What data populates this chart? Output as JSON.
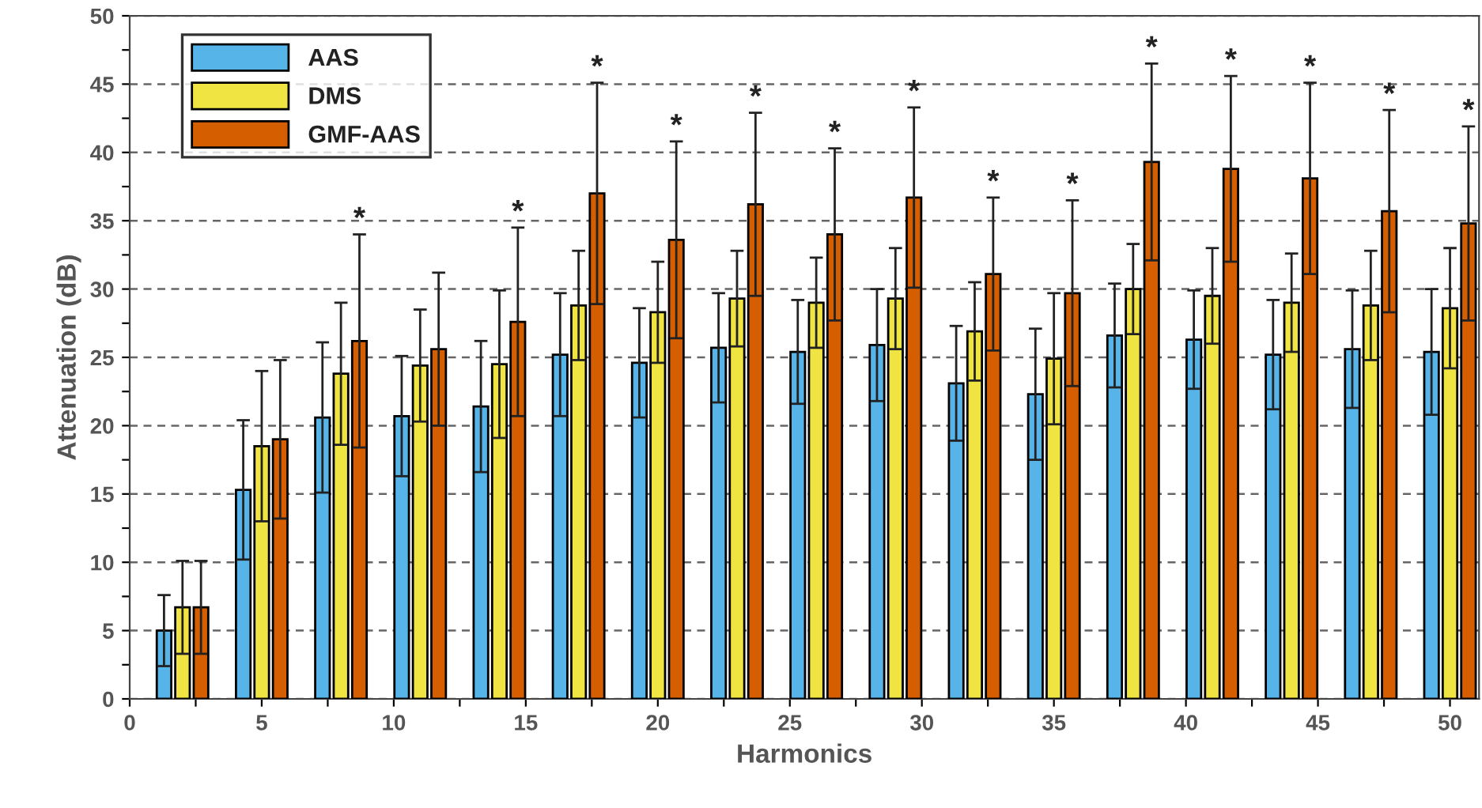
{
  "chart_data": {
    "type": "bar",
    "xlabel": "Harmonics",
    "ylabel": "Attenuation (dB)",
    "xlim": [
      0,
      51.1
    ],
    "xticks": [
      0,
      {
        "value": 2.5,
        "label": null
      },
      5,
      {
        "value": 7.5,
        "label": null
      },
      10,
      {
        "value": 12.5,
        "label": null
      },
      15,
      {
        "value": 17.5,
        "label": null
      },
      20,
      {
        "value": 22.5,
        "label": null
      },
      25,
      {
        "value": 27.5,
        "label": null
      },
      30,
      {
        "value": 32.5,
        "label": null
      },
      35,
      {
        "value": 37.5,
        "label": null
      },
      40,
      {
        "value": 42.5,
        "label": null
      },
      45,
      {
        "value": 47.5,
        "label": null
      },
      50
    ],
    "ylim": [
      0,
      50
    ],
    "yticks": [
      0,
      {
        "value": 2.5,
        "label": null
      },
      5,
      {
        "value": 7.5,
        "label": null
      },
      10,
      {
        "value": 12.5,
        "label": null
      },
      15,
      {
        "value": 17.5,
        "label": null
      },
      20,
      {
        "value": 22.5,
        "label": null
      },
      25,
      {
        "value": 27.5,
        "label": null
      },
      30,
      {
        "value": 32.5,
        "label": null
      },
      35,
      {
        "value": 37.5,
        "label": null
      },
      40,
      {
        "value": 42.5,
        "label": null
      },
      45,
      {
        "value": 47.5,
        "label": null
      },
      50
    ],
    "grid": "y",
    "legend": "top left",
    "series": [
      {
        "name": "AAS",
        "color": "#56b4e9",
        "x": [
          1.3,
          4.3,
          7.3,
          10.3,
          13.3,
          16.3,
          19.3,
          22.3,
          25.3,
          28.3,
          31.3,
          34.3,
          37.3,
          40.3,
          43.3,
          46.3,
          49.3
        ],
        "values": [
          5.0,
          15.3,
          20.6,
          20.7,
          21.4,
          25.2,
          24.6,
          25.7,
          25.4,
          25.9,
          23.1,
          22.3,
          26.6,
          26.3,
          25.2,
          25.6,
          25.4
        ],
        "errors": [
          2.6,
          5.1,
          5.5,
          4.4,
          4.8,
          4.5,
          4.0,
          4.0,
          3.8,
          4.1,
          4.2,
          4.8,
          3.8,
          3.6,
          4.0,
          4.3,
          4.6
        ]
      },
      {
        "name": "DMS",
        "color": "#f0e442",
        "x": [
          2,
          5,
          8,
          11,
          14,
          17,
          20,
          23,
          26,
          29,
          32,
          35,
          38,
          41,
          44,
          47,
          50
        ],
        "values": [
          6.7,
          18.5,
          23.8,
          24.4,
          24.5,
          28.8,
          28.3,
          29.3,
          29.0,
          29.3,
          26.9,
          24.9,
          30.0,
          29.5,
          29.0,
          28.8,
          28.6
        ],
        "errors": [
          3.4,
          5.5,
          5.2,
          4.1,
          5.4,
          4.0,
          3.7,
          3.5,
          3.3,
          3.7,
          3.6,
          4.8,
          3.3,
          3.5,
          3.6,
          4.0,
          4.4
        ]
      },
      {
        "name": "GMF-AAS",
        "color": "#d55e00",
        "x": [
          2.7,
          5.7,
          8.7,
          11.7,
          14.7,
          17.7,
          20.7,
          23.7,
          26.7,
          29.7,
          32.7,
          35.7,
          38.7,
          41.7,
          44.7,
          47.7,
          50.7
        ],
        "values": [
          6.7,
          19.0,
          26.2,
          25.6,
          27.6,
          37.0,
          33.6,
          36.2,
          34.0,
          36.7,
          31.1,
          29.7,
          39.3,
          38.8,
          38.1,
          35.7,
          34.8
        ],
        "errors": [
          3.4,
          5.8,
          7.8,
          5.6,
          6.9,
          8.1,
          7.2,
          6.7,
          6.3,
          6.6,
          5.6,
          6.8,
          7.2,
          6.8,
          7.0,
          7.4,
          7.1
        ]
      }
    ],
    "annotations": [
      {
        "text": "*",
        "x": 8.7,
        "y": 34.0
      },
      {
        "text": "*",
        "x": 14.7,
        "y": 34.5
      },
      {
        "text": "*",
        "x": 17.7,
        "y": 45.1
      },
      {
        "text": "*",
        "x": 20.7,
        "y": 40.8
      },
      {
        "text": "*",
        "x": 23.7,
        "y": 42.9
      },
      {
        "text": "*",
        "x": 26.7,
        "y": 40.3
      },
      {
        "text": "*",
        "x": 29.7,
        "y": 43.3
      },
      {
        "text": "*",
        "x": 32.7,
        "y": 36.7
      },
      {
        "text": "*",
        "x": 35.7,
        "y": 36.5
      },
      {
        "text": "*",
        "x": 38.7,
        "y": 46.5
      },
      {
        "text": "*",
        "x": 41.7,
        "y": 45.6
      },
      {
        "text": "*",
        "x": 44.7,
        "y": 45.1
      },
      {
        "text": "*",
        "x": 47.7,
        "y": 43.1
      },
      {
        "text": "*",
        "x": 50.7,
        "y": 41.9
      }
    ]
  }
}
